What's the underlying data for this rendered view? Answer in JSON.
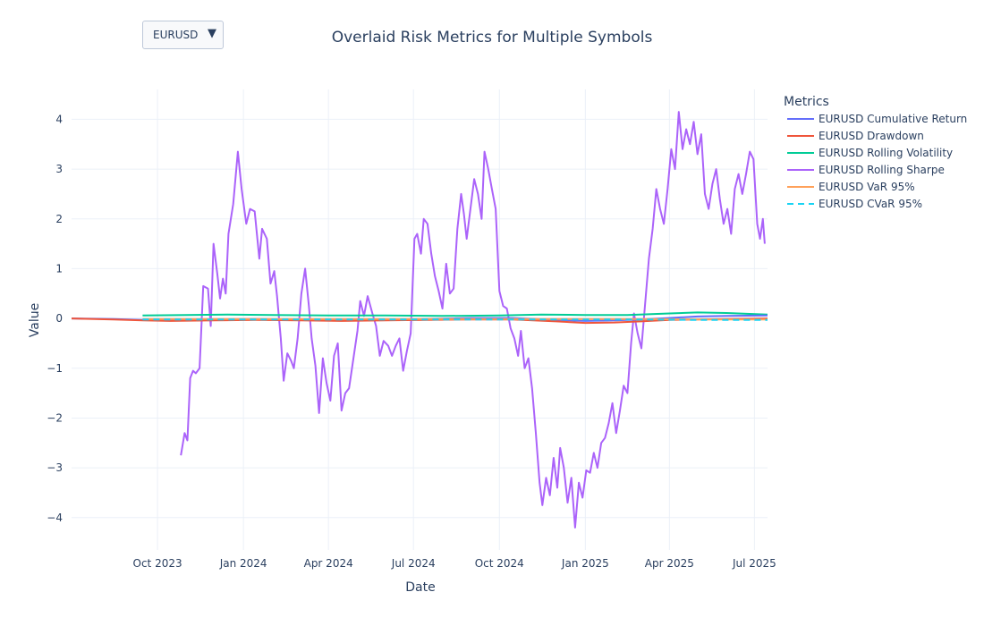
{
  "dropdown": {
    "selected": "EURUSD",
    "arrow_icon": "triangle-down-icon"
  },
  "chart_data": {
    "type": "line",
    "title": "Overlaid Risk Metrics for Multiple Symbols",
    "xlabel": "Date",
    "ylabel": "Value",
    "xlim": [
      "2023-07-01",
      "2025-07-15"
    ],
    "ylim": [
      -4.65,
      4.6
    ],
    "x_ticks": [
      {
        "date": "2023-10-01",
        "label": "Oct 2023"
      },
      {
        "date": "2024-01-01",
        "label": "Jan 2024"
      },
      {
        "date": "2024-04-01",
        "label": "Apr 2024"
      },
      {
        "date": "2024-07-01",
        "label": "Jul 2024"
      },
      {
        "date": "2024-10-01",
        "label": "Oct 2024"
      },
      {
        "date": "2025-01-01",
        "label": "Jan 2025"
      },
      {
        "date": "2025-04-01",
        "label": "Apr 2025"
      },
      {
        "date": "2025-07-01",
        "label": "Jul 2025"
      }
    ],
    "y_ticks": [
      -4,
      -3,
      -2,
      -1,
      0,
      1,
      2,
      3,
      4
    ],
    "y_tick_labels": [
      "−4",
      "−3",
      "−2",
      "−1",
      "0",
      "1",
      "2",
      "3",
      "4"
    ],
    "grid": true,
    "legend": {
      "title": "Metrics",
      "placement": "right"
    },
    "series": [
      {
        "name": "EURUSD Cumulative Return",
        "color": "#636efa",
        "dash": "solid",
        "points": [
          [
            "2023-07-01",
            0.0
          ],
          [
            "2023-08-15",
            -0.01
          ],
          [
            "2023-09-15",
            -0.03
          ],
          [
            "2023-10-15",
            -0.03
          ],
          [
            "2023-12-01",
            -0.02
          ],
          [
            "2024-01-15",
            -0.01
          ],
          [
            "2024-03-01",
            -0.02
          ],
          [
            "2024-04-15",
            -0.02
          ],
          [
            "2024-06-01",
            -0.02
          ],
          [
            "2024-07-15",
            -0.01
          ],
          [
            "2024-09-01",
            0.01
          ],
          [
            "2024-10-15",
            0.01
          ],
          [
            "2024-12-01",
            -0.03
          ],
          [
            "2025-01-01",
            -0.05
          ],
          [
            "2025-02-01",
            -0.04
          ],
          [
            "2025-03-01",
            -0.02
          ],
          [
            "2025-04-01",
            0.01
          ],
          [
            "2025-05-01",
            0.04
          ],
          [
            "2025-06-01",
            0.05
          ],
          [
            "2025-07-15",
            0.06
          ]
        ]
      },
      {
        "name": "EURUSD Drawdown",
        "color": "#ef553b",
        "dash": "solid",
        "points": [
          [
            "2023-07-01",
            0.0
          ],
          [
            "2023-08-15",
            -0.02
          ],
          [
            "2023-09-15",
            -0.04
          ],
          [
            "2023-10-15",
            -0.05
          ],
          [
            "2023-12-01",
            -0.04
          ],
          [
            "2024-01-15",
            -0.03
          ],
          [
            "2024-03-01",
            -0.04
          ],
          [
            "2024-04-15",
            -0.05
          ],
          [
            "2024-06-01",
            -0.04
          ],
          [
            "2024-07-15",
            -0.03
          ],
          [
            "2024-09-01",
            -0.02
          ],
          [
            "2024-10-15",
            -0.02
          ],
          [
            "2024-12-01",
            -0.06
          ],
          [
            "2025-01-01",
            -0.09
          ],
          [
            "2025-02-01",
            -0.08
          ],
          [
            "2025-03-01",
            -0.06
          ],
          [
            "2025-04-01",
            -0.03
          ],
          [
            "2025-05-01",
            -0.02
          ],
          [
            "2025-06-01",
            -0.01
          ],
          [
            "2025-07-15",
            0.0
          ]
        ]
      },
      {
        "name": "EURUSD Rolling Volatility",
        "color": "#00cc96",
        "dash": "solid",
        "points": [
          [
            "2023-09-15",
            0.06
          ],
          [
            "2023-11-01",
            0.07
          ],
          [
            "2023-12-15",
            0.08
          ],
          [
            "2024-02-01",
            0.07
          ],
          [
            "2024-04-01",
            0.06
          ],
          [
            "2024-06-01",
            0.06
          ],
          [
            "2024-08-01",
            0.05
          ],
          [
            "2024-10-01",
            0.06
          ],
          [
            "2024-11-15",
            0.08
          ],
          [
            "2025-01-01",
            0.07
          ],
          [
            "2025-02-15",
            0.07
          ],
          [
            "2025-04-01",
            0.1
          ],
          [
            "2025-05-01",
            0.12
          ],
          [
            "2025-06-01",
            0.11
          ],
          [
            "2025-07-15",
            0.08
          ]
        ]
      },
      {
        "name": "EURUSD Rolling Sharpe",
        "color": "#ab63fa",
        "dash": "solid",
        "points": [
          [
            "2023-10-26",
            -2.75
          ],
          [
            "2023-10-30",
            -2.3
          ],
          [
            "2023-11-02",
            -2.45
          ],
          [
            "2023-11-05",
            -1.2
          ],
          [
            "2023-11-08",
            -1.05
          ],
          [
            "2023-11-11",
            -1.1
          ],
          [
            "2023-11-15",
            -1.0
          ],
          [
            "2023-11-19",
            0.65
          ],
          [
            "2023-11-24",
            0.6
          ],
          [
            "2023-11-27",
            -0.15
          ],
          [
            "2023-11-30",
            1.5
          ],
          [
            "2023-12-04",
            0.9
          ],
          [
            "2023-12-07",
            0.4
          ],
          [
            "2023-12-10",
            0.8
          ],
          [
            "2023-12-13",
            0.5
          ],
          [
            "2023-12-16",
            1.7
          ],
          [
            "2023-12-21",
            2.3
          ],
          [
            "2023-12-26",
            3.35
          ],
          [
            "2023-12-30",
            2.6
          ],
          [
            "2024-01-04",
            1.9
          ],
          [
            "2024-01-08",
            2.2
          ],
          [
            "2024-01-13",
            2.15
          ],
          [
            "2024-01-18",
            1.2
          ],
          [
            "2024-01-21",
            1.8
          ],
          [
            "2024-01-26",
            1.6
          ],
          [
            "2024-01-30",
            0.7
          ],
          [
            "2024-02-03",
            0.95
          ],
          [
            "2024-02-06",
            0.45
          ],
          [
            "2024-02-10",
            -0.4
          ],
          [
            "2024-02-13",
            -1.25
          ],
          [
            "2024-02-17",
            -0.7
          ],
          [
            "2024-02-21",
            -0.85
          ],
          [
            "2024-02-24",
            -1.0
          ],
          [
            "2024-02-28",
            -0.4
          ],
          [
            "2024-03-03",
            0.5
          ],
          [
            "2024-03-07",
            1.0
          ],
          [
            "2024-03-11",
            0.25
          ],
          [
            "2024-03-14",
            -0.4
          ],
          [
            "2024-03-18",
            -0.95
          ],
          [
            "2024-03-22",
            -1.9
          ],
          [
            "2024-03-26",
            -0.8
          ],
          [
            "2024-03-30",
            -1.3
          ],
          [
            "2024-04-03",
            -1.65
          ],
          [
            "2024-04-07",
            -0.75
          ],
          [
            "2024-04-11",
            -0.5
          ],
          [
            "2024-04-15",
            -1.85
          ],
          [
            "2024-04-19",
            -1.5
          ],
          [
            "2024-04-23",
            -1.4
          ],
          [
            "2024-04-27",
            -0.9
          ],
          [
            "2024-05-02",
            -0.25
          ],
          [
            "2024-05-05",
            0.35
          ],
          [
            "2024-05-09",
            0.05
          ],
          [
            "2024-05-13",
            0.45
          ],
          [
            "2024-05-18",
            0.1
          ],
          [
            "2024-05-22",
            -0.15
          ],
          [
            "2024-05-26",
            -0.75
          ],
          [
            "2024-05-30",
            -0.45
          ],
          [
            "2024-06-04",
            -0.55
          ],
          [
            "2024-06-08",
            -0.75
          ],
          [
            "2024-06-12",
            -0.55
          ],
          [
            "2024-06-16",
            -0.4
          ],
          [
            "2024-06-20",
            -1.05
          ],
          [
            "2024-06-24",
            -0.65
          ],
          [
            "2024-06-28",
            -0.3
          ],
          [
            "2024-07-02",
            1.6
          ],
          [
            "2024-07-05",
            1.7
          ],
          [
            "2024-07-09",
            1.3
          ],
          [
            "2024-07-12",
            2.0
          ],
          [
            "2024-07-16",
            1.9
          ],
          [
            "2024-07-20",
            1.3
          ],
          [
            "2024-07-24",
            0.85
          ],
          [
            "2024-07-28",
            0.55
          ],
          [
            "2024-08-01",
            0.2
          ],
          [
            "2024-08-05",
            1.1
          ],
          [
            "2024-08-09",
            0.5
          ],
          [
            "2024-08-13",
            0.6
          ],
          [
            "2024-08-17",
            1.8
          ],
          [
            "2024-08-21",
            2.5
          ],
          [
            "2024-08-24",
            2.1
          ],
          [
            "2024-08-27",
            1.6
          ],
          [
            "2024-08-31",
            2.2
          ],
          [
            "2024-09-04",
            2.8
          ],
          [
            "2024-09-08",
            2.5
          ],
          [
            "2024-09-12",
            2.0
          ],
          [
            "2024-09-15",
            3.35
          ],
          [
            "2024-09-19",
            3.0
          ],
          [
            "2024-09-23",
            2.6
          ],
          [
            "2024-09-27",
            2.2
          ],
          [
            "2024-10-01",
            0.55
          ],
          [
            "2024-10-05",
            0.25
          ],
          [
            "2024-10-09",
            0.2
          ],
          [
            "2024-10-13",
            -0.2
          ],
          [
            "2024-10-17",
            -0.4
          ],
          [
            "2024-10-21",
            -0.75
          ],
          [
            "2024-10-24",
            -0.25
          ],
          [
            "2024-10-28",
            -1.0
          ],
          [
            "2024-11-01",
            -0.8
          ],
          [
            "2024-11-05",
            -1.4
          ],
          [
            "2024-11-09",
            -2.3
          ],
          [
            "2024-11-13",
            -3.3
          ],
          [
            "2024-11-16",
            -3.75
          ],
          [
            "2024-11-20",
            -3.2
          ],
          [
            "2024-11-24",
            -3.55
          ],
          [
            "2024-11-28",
            -2.8
          ],
          [
            "2024-12-02",
            -3.4
          ],
          [
            "2024-12-05",
            -2.6
          ],
          [
            "2024-12-09",
            -3.0
          ],
          [
            "2024-12-13",
            -3.7
          ],
          [
            "2024-12-17",
            -3.2
          ],
          [
            "2024-12-21",
            -4.2
          ],
          [
            "2024-12-25",
            -3.3
          ],
          [
            "2024-12-29",
            -3.6
          ],
          [
            "2025-01-02",
            -3.05
          ],
          [
            "2025-01-06",
            -3.1
          ],
          [
            "2025-01-10",
            -2.7
          ],
          [
            "2025-01-14",
            -3.0
          ],
          [
            "2025-01-18",
            -2.5
          ],
          [
            "2025-01-22",
            -2.4
          ],
          [
            "2025-01-26",
            -2.1
          ],
          [
            "2025-01-30",
            -1.7
          ],
          [
            "2025-02-03",
            -2.3
          ],
          [
            "2025-02-07",
            -1.85
          ],
          [
            "2025-02-11",
            -1.35
          ],
          [
            "2025-02-15",
            -1.5
          ],
          [
            "2025-02-19",
            -0.5
          ],
          [
            "2025-02-22",
            0.1
          ],
          [
            "2025-02-26",
            -0.3
          ],
          [
            "2025-03-02",
            -0.6
          ],
          [
            "2025-03-06",
            0.3
          ],
          [
            "2025-03-10",
            1.2
          ],
          [
            "2025-03-14",
            1.8
          ],
          [
            "2025-03-18",
            2.6
          ],
          [
            "2025-03-22",
            2.2
          ],
          [
            "2025-03-26",
            1.9
          ],
          [
            "2025-03-30",
            2.6
          ],
          [
            "2025-04-03",
            3.4
          ],
          [
            "2025-04-07",
            3.0
          ],
          [
            "2025-04-11",
            4.15
          ],
          [
            "2025-04-15",
            3.4
          ],
          [
            "2025-04-19",
            3.8
          ],
          [
            "2025-04-23",
            3.5
          ],
          [
            "2025-04-27",
            3.95
          ],
          [
            "2025-05-01",
            3.3
          ],
          [
            "2025-05-05",
            3.7
          ],
          [
            "2025-05-09",
            2.5
          ],
          [
            "2025-05-13",
            2.2
          ],
          [
            "2025-05-17",
            2.7
          ],
          [
            "2025-05-21",
            3.0
          ],
          [
            "2025-05-25",
            2.4
          ],
          [
            "2025-05-29",
            1.9
          ],
          [
            "2025-06-02",
            2.2
          ],
          [
            "2025-06-06",
            1.7
          ],
          [
            "2025-06-10",
            2.6
          ],
          [
            "2025-06-14",
            2.9
          ],
          [
            "2025-06-18",
            2.5
          ],
          [
            "2025-06-22",
            2.9
          ],
          [
            "2025-06-26",
            3.35
          ],
          [
            "2025-06-30",
            3.2
          ],
          [
            "2025-07-04",
            1.9
          ],
          [
            "2025-07-07",
            1.6
          ],
          [
            "2025-07-10",
            2.0
          ],
          [
            "2025-07-12",
            1.5
          ]
        ]
      },
      {
        "name": "EURUSD VaR 95%",
        "color": "#ffa15a",
        "dash": "solid",
        "points": [
          [
            "2023-09-15",
            -0.01
          ],
          [
            "2023-12-01",
            -0.01
          ],
          [
            "2024-03-01",
            -0.01
          ],
          [
            "2024-06-01",
            -0.01
          ],
          [
            "2024-09-01",
            -0.01
          ],
          [
            "2024-12-01",
            -0.01
          ],
          [
            "2025-03-01",
            -0.01
          ],
          [
            "2025-05-01",
            -0.02
          ],
          [
            "2025-07-15",
            -0.02
          ]
        ]
      },
      {
        "name": "EURUSD CVaR 95%",
        "color": "#19d3f3",
        "dash": "dash",
        "points": [
          [
            "2023-09-15",
            -0.02
          ],
          [
            "2023-12-01",
            -0.02
          ],
          [
            "2024-03-01",
            -0.02
          ],
          [
            "2024-06-01",
            -0.02
          ],
          [
            "2024-09-01",
            -0.02
          ],
          [
            "2024-12-01",
            -0.02
          ],
          [
            "2025-03-01",
            -0.02
          ],
          [
            "2025-05-01",
            -0.03
          ],
          [
            "2025-07-15",
            -0.03
          ]
        ]
      }
    ]
  }
}
